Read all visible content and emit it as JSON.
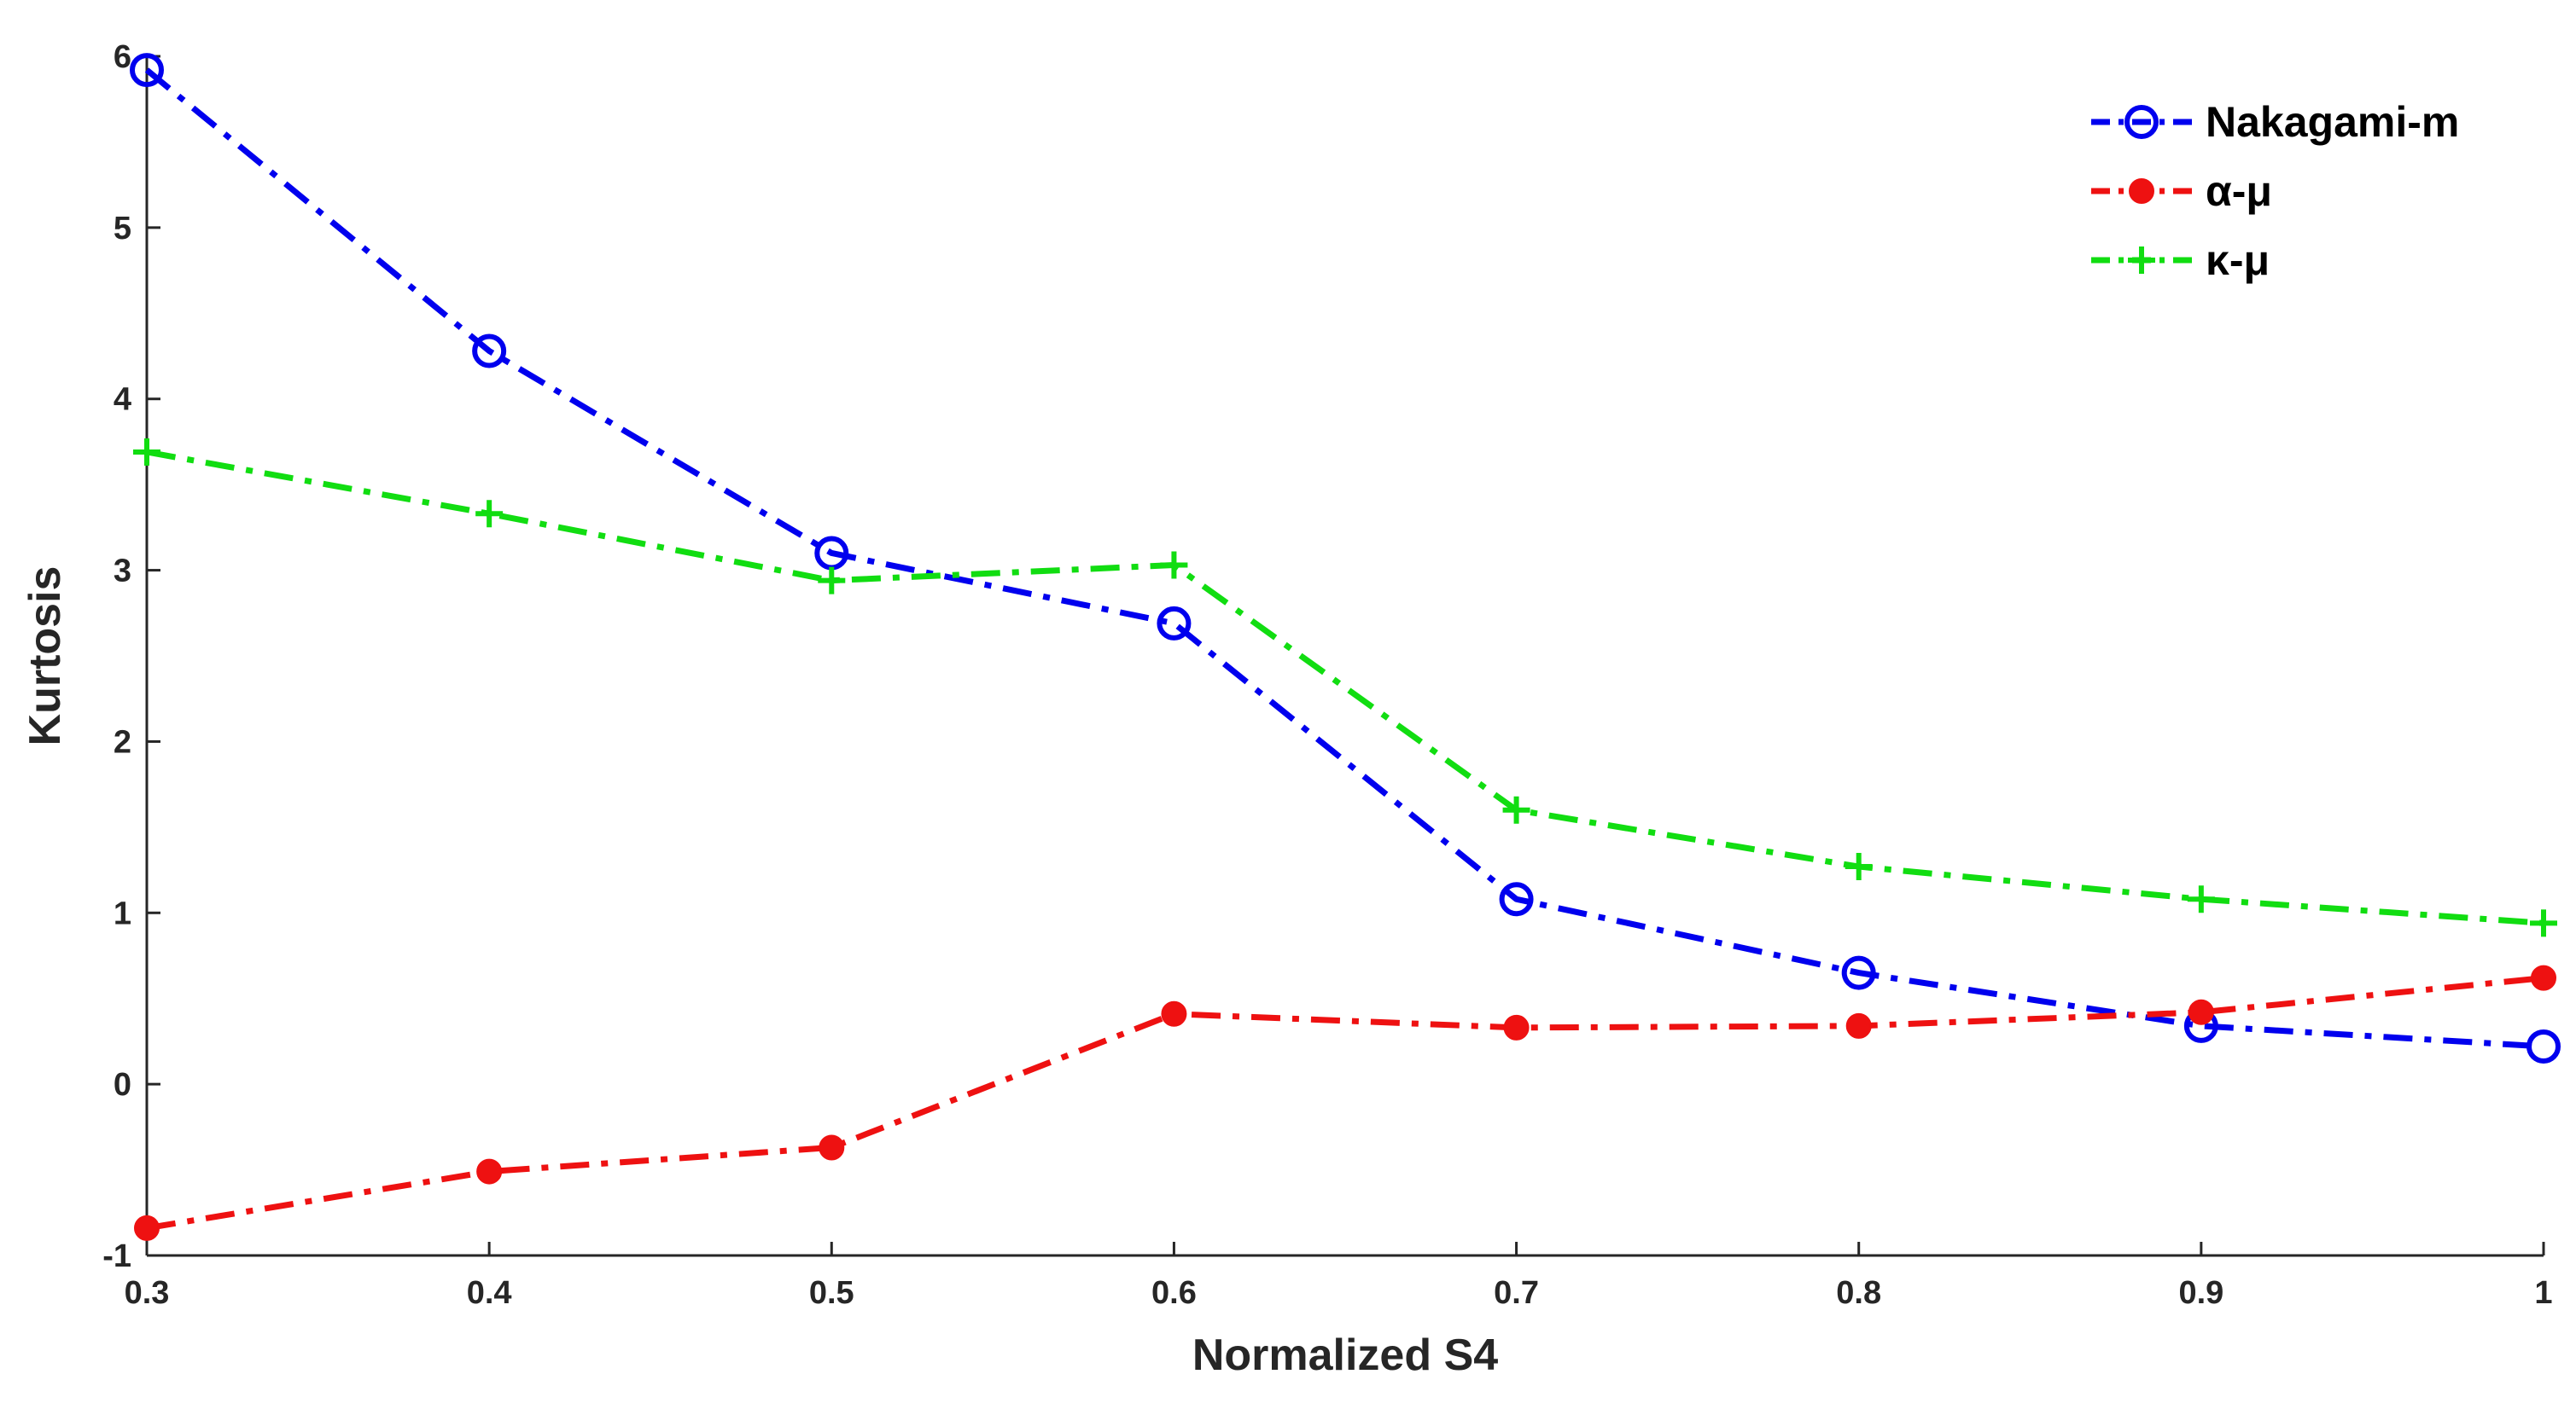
{
  "chart_data": {
    "type": "line",
    "title": "",
    "xlabel": "Normalized S4",
    "ylabel": "Kurtosis",
    "xlim": [
      0.3,
      1
    ],
    "ylim": [
      -1,
      6
    ],
    "x": [
      0.3,
      0.4,
      0.5,
      0.6,
      0.7,
      0.8,
      0.9,
      1
    ],
    "x_tick_labels": [
      "0.3",
      "0.4",
      "0.5",
      "0.6",
      "0.7",
      "0.8",
      "0.9",
      "1"
    ],
    "y_ticks": [
      -1,
      0,
      1,
      2,
      3,
      4,
      5,
      6
    ],
    "y_tick_labels": [
      "-1",
      "0",
      "1",
      "2",
      "3",
      "4",
      "5",
      "6"
    ],
    "grid": false,
    "legend_position": "top-right",
    "series": [
      {
        "name": "Nakagami-m",
        "color": "#0000ee",
        "marker": "circle-open",
        "line_style": "dash-dot",
        "values": [
          5.92,
          4.28,
          3.1,
          2.69,
          1.08,
          0.65,
          0.34,
          0.22
        ]
      },
      {
        "name": "α-μ",
        "color": "#ee1111",
        "marker": "circle-filled",
        "line_style": "dash-dot",
        "values": [
          -0.84,
          -0.51,
          -0.37,
          0.41,
          0.33,
          0.34,
          0.42,
          0.62
        ]
      },
      {
        "name": "κ-μ",
        "color": "#11dd11",
        "marker": "plus",
        "line_style": "dash-dot",
        "values": [
          3.69,
          3.33,
          2.94,
          3.03,
          1.6,
          1.27,
          1.08,
          0.94
        ]
      }
    ]
  }
}
